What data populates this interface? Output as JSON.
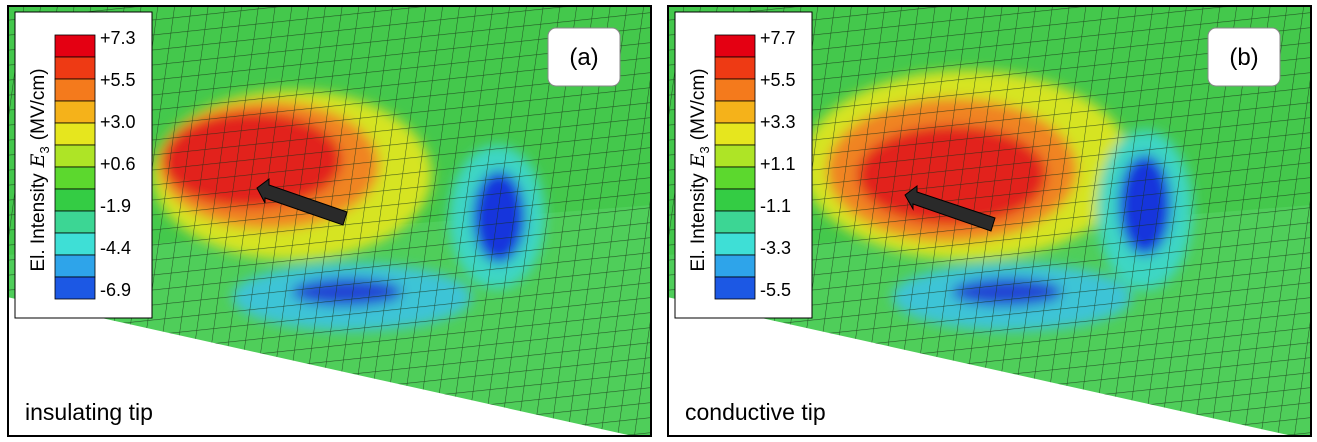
{
  "panels": [
    {
      "label": "(a)",
      "caption": "insulating tip",
      "colorbar": {
        "title": "El. Intensity",
        "symbol": "E",
        "subscript": "3",
        "unit": "(MV/cm)",
        "ticks": [
          "+7.3",
          "+5.5",
          "+3.0",
          "+0.6",
          "-1.9",
          "-4.4",
          "-6.9"
        ]
      }
    },
    {
      "label": "(b)",
      "caption": "conductive tip",
      "colorbar": {
        "title": "El. Intensity",
        "symbol": "E",
        "subscript": "3",
        "unit": "(MV/cm)",
        "ticks": [
          "+7.7",
          "+5.5",
          "+3.3",
          "+1.1",
          "-1.1",
          "-3.3",
          "-5.5"
        ]
      }
    }
  ]
}
